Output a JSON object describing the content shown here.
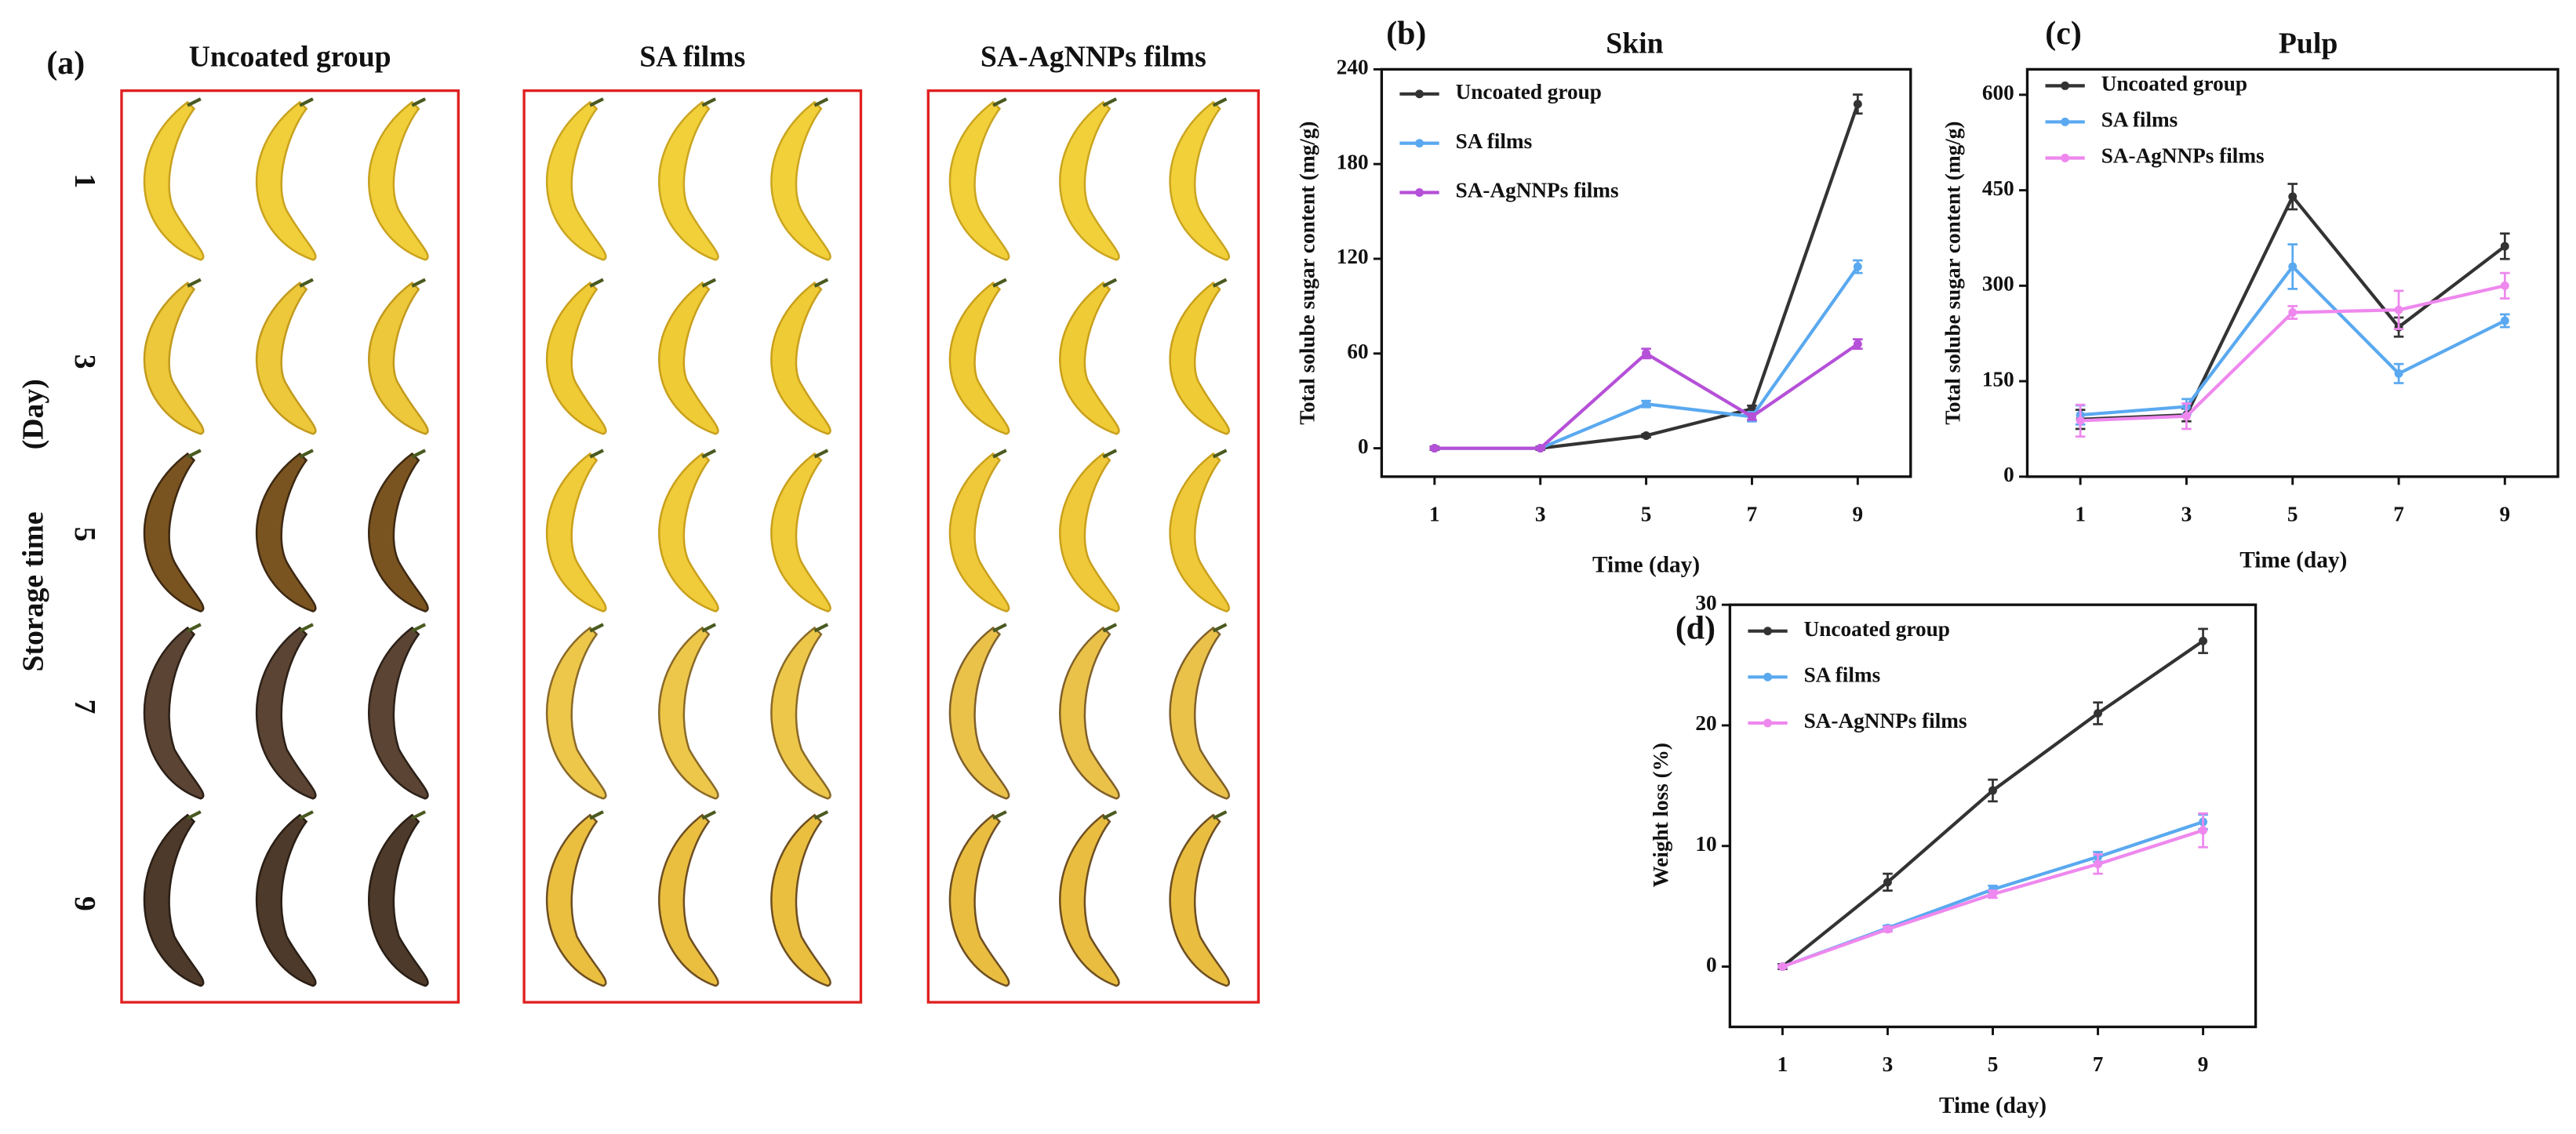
{
  "photo_panel": {
    "label": "(a)",
    "groups": [
      "Uncoated group",
      "SA films",
      "SA-AgNNPs films"
    ],
    "axis_title": "Storage time",
    "axis_unit": "(Day)",
    "days": [
      "1",
      "3",
      "5",
      "7",
      "9"
    ]
  },
  "chart_data": [
    {
      "type": "line",
      "label": "(b)",
      "title": "Skin",
      "x_label": "Time (day)",
      "y_label": "Total solube sugar content (mg/g)",
      "x": [
        1,
        3,
        5,
        7,
        9
      ],
      "xlim": [
        0,
        10
      ],
      "xticks": [
        1,
        3,
        5,
        7,
        9
      ],
      "ylim": [
        -18,
        240
      ],
      "yticks": [
        0,
        60,
        120,
        180,
        240
      ],
      "series": [
        {
          "name": "Uncoated group",
          "color": "#333333",
          "values": [
            0,
            0,
            8,
            25,
            218
          ],
          "errors": [
            1,
            1,
            1,
            2,
            6
          ]
        },
        {
          "name": "SA films",
          "color": "#5aa9f0",
          "values": [
            0,
            0,
            28,
            20,
            115
          ],
          "errors": [
            0.5,
            0.5,
            2,
            3,
            4
          ]
        },
        {
          "name": "SA-AgNNPs films",
          "color": "#b550d8",
          "values": [
            0,
            0,
            60,
            20,
            66
          ],
          "errors": [
            0.5,
            0.5,
            3,
            2,
            3
          ]
        }
      ]
    },
    {
      "type": "line",
      "label": "(c)",
      "title": "Pulp",
      "x_label": "Time (day)",
      "y_label": "Total solube sugar content (mg/g)",
      "x": [
        1,
        3,
        5,
        7,
        9
      ],
      "xlim": [
        0,
        10
      ],
      "xticks": [
        1,
        3,
        5,
        7,
        9
      ],
      "ylim": [
        0,
        640
      ],
      "yticks": [
        0,
        150,
        300,
        450,
        600
      ],
      "series": [
        {
          "name": "Uncoated group",
          "color": "#333333",
          "values": [
            90,
            97,
            440,
            235,
            362
          ],
          "errors": [
            15,
            10,
            20,
            15,
            20
          ]
        },
        {
          "name": "SA films",
          "color": "#5aa9f0",
          "values": [
            97,
            110,
            330,
            162,
            245
          ],
          "errors": [
            15,
            12,
            35,
            15,
            10
          ]
        },
        {
          "name": "SA-AgNNPs films",
          "color": "#ee88ee",
          "values": [
            88,
            95,
            258,
            262,
            300
          ],
          "errors": [
            25,
            20,
            10,
            30,
            20
          ]
        }
      ]
    },
    {
      "type": "line",
      "label": "(d)",
      "x_label": "Time (day)",
      "y_label": "Weight loss (%)",
      "x": [
        1,
        3,
        5,
        7,
        9
      ],
      "xlim": [
        0,
        10
      ],
      "xticks": [
        1,
        3,
        5,
        7,
        9
      ],
      "ylim": [
        -5,
        30
      ],
      "yticks": [
        0,
        10,
        20,
        30
      ],
      "series": [
        {
          "name": "Uncoated group",
          "color": "#333333",
          "values": [
            0,
            7,
            14.6,
            21,
            27
          ],
          "errors": [
            0.2,
            0.7,
            0.9,
            0.9,
            1
          ]
        },
        {
          "name": "SA films",
          "color": "#5aa9f0",
          "values": [
            0,
            3.2,
            6.4,
            9.1,
            12
          ],
          "errors": [
            0.1,
            0.2,
            0.3,
            0.4,
            0.6
          ]
        },
        {
          "name": "SA-AgNNPs films",
          "color": "#ee88ee",
          "values": [
            0,
            3.1,
            6,
            8.5,
            11.3
          ],
          "errors": [
            0.1,
            0.2,
            0.3,
            0.8,
            1.4
          ]
        }
      ]
    }
  ]
}
